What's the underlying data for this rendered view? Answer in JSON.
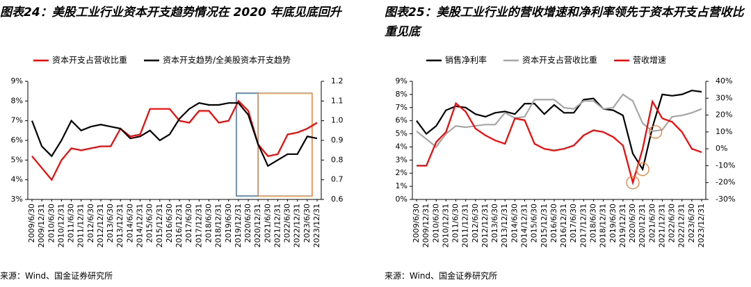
{
  "chart_data": [
    {
      "type": "line",
      "title": "图表24：美股工业行业资本开支趋势情况在 2020 年底见底回升",
      "source": "来源：Wind、国金证券研究所",
      "categories": [
        "2009/6/30",
        "2009/12/31",
        "2010/6/30",
        "2010/12/31",
        "2011/6/30",
        "2011/12/31",
        "2012/6/30",
        "2012/12/31",
        "2013/6/30",
        "2013/12/31",
        "2014/6/30",
        "2014/12/31",
        "2015/6/30",
        "2015/12/31",
        "2016/6/30",
        "2016/12/31",
        "2017/6/30",
        "2017/12/31",
        "2018/6/30",
        "2018/12/31",
        "2019/6/30",
        "2019/12/31",
        "2020/6/30",
        "2020/12/31",
        "2021/6/30",
        "2021/12/31",
        "2022/6/30",
        "2022/12/31",
        "2023/6/30",
        "2023/12/31"
      ],
      "series": [
        {
          "name": "资本开支占营收比重",
          "color": "#ff0000",
          "axis": "y",
          "values": [
            5.2,
            4.6,
            4.0,
            5.0,
            5.6,
            5.5,
            5.6,
            5.7,
            5.7,
            6.6,
            6.2,
            6.3,
            7.6,
            7.6,
            7.6,
            7.0,
            6.9,
            7.5,
            7.5,
            6.9,
            7.0,
            8.0,
            7.5,
            5.8,
            5.2,
            5.3,
            6.3,
            6.4,
            6.6,
            6.9
          ]
        },
        {
          "name": "资本开支趋势/全美股资本开支趋势",
          "color": "#000000",
          "axis": "y2",
          "values": [
            1.0,
            0.87,
            0.82,
            0.9,
            1.0,
            0.95,
            0.97,
            0.98,
            0.97,
            0.96,
            0.91,
            0.92,
            0.95,
            0.9,
            0.93,
            1.01,
            1.06,
            1.09,
            1.08,
            1.08,
            1.09,
            1.09,
            1.03,
            0.88,
            0.77,
            0.8,
            0.83,
            0.83,
            0.92,
            0.91
          ]
        }
      ],
      "ylim": [
        3,
        9
      ],
      "yticks": [
        {
          "value": 3,
          "label": "3%"
        },
        {
          "value": 4,
          "label": "4%"
        },
        {
          "value": 5,
          "label": "5%"
        },
        {
          "value": 6,
          "label": "6%"
        },
        {
          "value": 7,
          "label": "7%"
        },
        {
          "value": 8,
          "label": "8%"
        },
        {
          "value": 9,
          "label": "9%"
        }
      ],
      "y2lim": [
        0.6,
        1.2
      ],
      "y2ticks": [
        0.6,
        0.7,
        0.8,
        0.9,
        {
          "value": 1,
          "label": "1.0"
        },
        1.1,
        1.2
      ]
    },
    {
      "type": "line",
      "title": "图表25：美股工业行业的营收增速和净利率领先于资本开支占营收比重见底",
      "source": "来源：Wind、国金证券研究所",
      "categories": [
        "2009/6/30",
        "2009/12/31",
        "2010/6/30",
        "2010/12/31",
        "2011/6/30",
        "2011/12/31",
        "2012/6/30",
        "2012/12/31",
        "2013/6/30",
        "2013/12/31",
        "2014/6/30",
        "2014/12/31",
        "2015/6/30",
        "2015/12/31",
        "2016/6/30",
        "2016/12/31",
        "2017/6/30",
        "2017/12/31",
        "2018/6/30",
        "2018/12/31",
        "2019/6/30",
        "2019/12/31",
        "2020/6/30",
        "2020/12/31",
        "2021/6/30",
        "2021/12/31",
        "2022/6/30",
        "2022/12/31",
        "2023/6/30",
        "2023/12/31"
      ],
      "series": [
        {
          "name": "销售净利率",
          "color": "#000000",
          "axis": "y",
          "values": [
            6.0,
            5.0,
            5.6,
            6.8,
            7.1,
            7.0,
            6.5,
            6.3,
            6.6,
            6.7,
            6.5,
            7.3,
            7.3,
            6.5,
            7.2,
            6.6,
            6.6,
            7.6,
            7.7,
            6.9,
            6.8,
            6.4,
            3.5,
            2.3,
            5.5,
            8.0,
            7.9,
            8.0,
            8.3,
            8.2
          ]
        },
        {
          "name": "资本开支占营收比重",
          "color": "#a6a6a6",
          "axis": "y",
          "values": [
            5.2,
            4.6,
            4.0,
            5.0,
            5.6,
            5.5,
            5.6,
            5.7,
            5.7,
            6.6,
            6.2,
            6.3,
            7.6,
            7.6,
            7.6,
            7.0,
            6.9,
            7.5,
            7.5,
            6.9,
            7.0,
            8.0,
            7.5,
            5.8,
            5.2,
            5.3,
            6.3,
            6.4,
            6.6,
            6.9
          ]
        },
        {
          "name": "营收增速",
          "color": "#ff0000",
          "axis": "y2",
          "values": [
            -10,
            -10,
            4,
            10,
            27,
            22,
            12,
            8,
            5,
            3,
            18,
            17,
            3,
            0,
            -1,
            0,
            2,
            8,
            11,
            10,
            7,
            2,
            -20,
            0,
            28,
            18,
            16,
            10,
            0,
            -2
          ]
        }
      ],
      "ylim": [
        0,
        9
      ],
      "yticks": [
        {
          "value": 0,
          "label": "0%"
        },
        {
          "value": 1,
          "label": "1%"
        },
        {
          "value": 2,
          "label": "2%"
        },
        {
          "value": 3,
          "label": "3%"
        },
        {
          "value": 4,
          "label": "4%"
        },
        {
          "value": 5,
          "label": "5%"
        },
        {
          "value": 6,
          "label": "6%"
        },
        {
          "value": 7,
          "label": "7%"
        },
        {
          "value": 8,
          "label": "8%"
        },
        {
          "value": 9,
          "label": "9%"
        }
      ],
      "y2lim": [
        -30,
        40
      ],
      "y2ticks": [
        {
          "value": -30,
          "label": "-30%"
        },
        {
          "value": -20,
          "label": "-20%"
        },
        {
          "value": -10,
          "label": "-10%"
        },
        {
          "value": 0,
          "label": "0%"
        },
        {
          "value": 10,
          "label": "10%"
        },
        {
          "value": 20,
          "label": "20%"
        },
        {
          "value": 30,
          "label": "30%"
        },
        {
          "value": 40,
          "label": "40%"
        }
      ]
    }
  ]
}
